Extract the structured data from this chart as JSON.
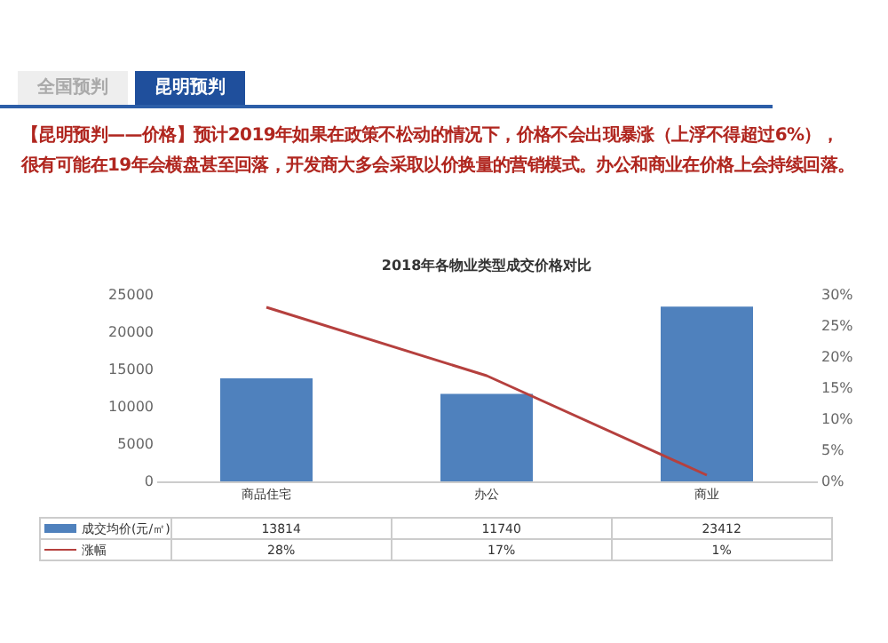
{
  "chart_data": {
    "type": "bar",
    "title": "2018年各物业类型成交价格对比",
    "annotations": [
      "全国预判",
      "昆明预判",
      "【昆明预判——价格】预计2019年如果在政策不松动的情况下，价格不会出现暴涨（上浮不得超过6%），",
      "很有可能在19年会横盘甚至回落，开发商大多会采取以价换量的营销模式。办公和商业在价格上会持续回落。"
    ],
    "categories": [
      "商品住宅",
      "办公",
      "商业"
    ],
    "series": [
      {
        "name": "成交均价(元/㎡)",
        "color": "#4f81bd",
        "values": [
          13814,
          11740,
          23412
        ],
        "value_labels": [
          "13814",
          "11740",
          "23412"
        ]
      },
      {
        "name": "涨幅",
        "type": "line",
        "axis": "y2",
        "color": "#b5403e",
        "values": [
          28,
          17,
          1
        ],
        "value_labels": [
          "28%",
          "17%",
          "1%"
        ]
      }
    ],
    "ylim": [
      0,
      25000
    ],
    "yticks": [
      0,
      5000,
      10000,
      15000,
      20000,
      25000
    ],
    "y2lim": [
      0,
      30
    ],
    "y2ticks": [
      {
        "value": 0,
        "label": "0%"
      },
      {
        "value": 5,
        "label": "5%"
      },
      {
        "value": 10,
        "label": "10%"
      },
      {
        "value": 15,
        "label": "15%"
      },
      {
        "value": 20,
        "label": "20%"
      },
      {
        "value": 25,
        "label": "25%"
      },
      {
        "value": 30,
        "label": "30%"
      }
    ],
    "legend": "bottom"
  }
}
